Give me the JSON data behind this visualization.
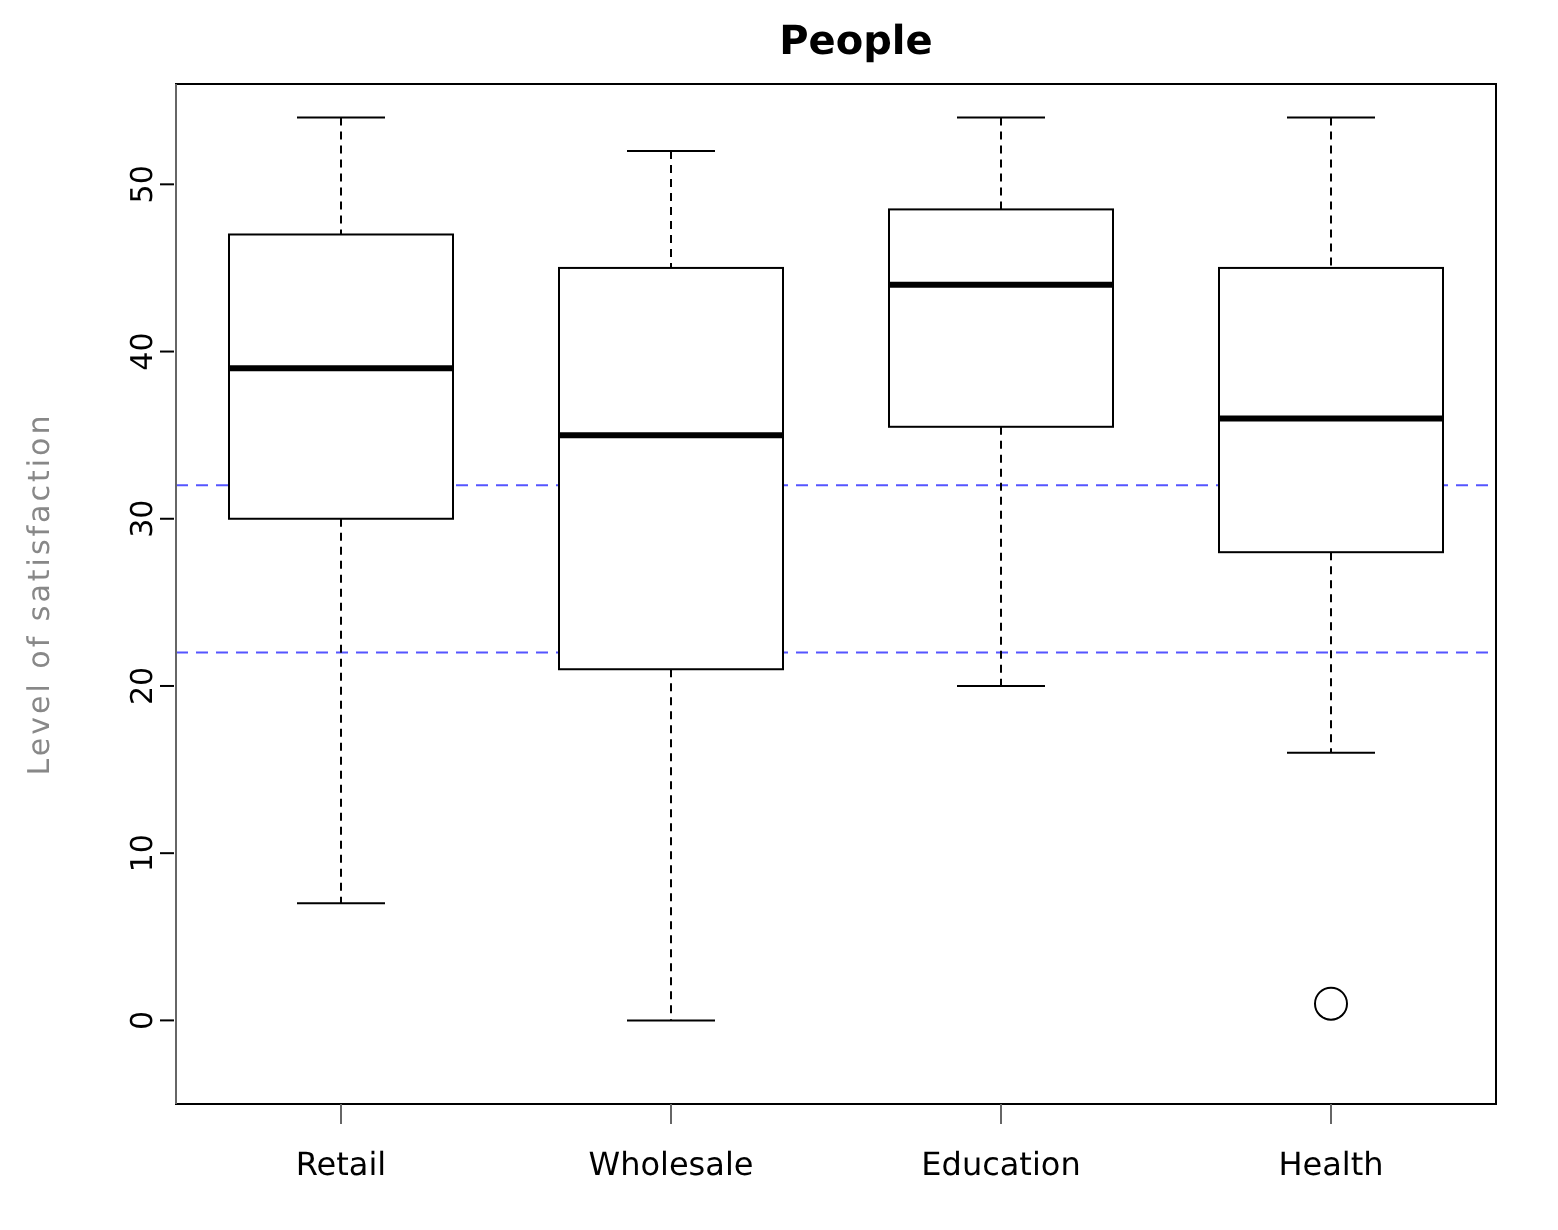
{
  "chart_data": {
    "type": "box",
    "title": "People",
    "ylabel": "Level of satisfaction",
    "categories": [
      "Retail",
      "Wholesale",
      "Education",
      "Health"
    ],
    "boxes": [
      {
        "low": 7,
        "q1": 30,
        "median": 39,
        "q3": 47,
        "high": 54
      },
      {
        "low": 0,
        "q1": 21,
        "median": 35,
        "q3": 45,
        "high": 52
      },
      {
        "low": 20,
        "q1": 35.5,
        "median": 44,
        "q3": 48.5,
        "high": 54
      },
      {
        "low": 16,
        "q1": 28,
        "median": 36,
        "q3": 45,
        "high": 54,
        "outliers": [
          1
        ]
      }
    ],
    "ylim": [
      -5,
      56
    ],
    "yticks": [
      0,
      10,
      20,
      30,
      40,
      50
    ],
    "ref_lines": [
      {
        "axis": "y",
        "value": 32,
        "color": "#5555ff",
        "line_style": "dashed"
      },
      {
        "axis": "y",
        "value": 22,
        "color": "#5555ff",
        "line_style": "dashed"
      }
    ],
    "grid": false,
    "legend": false
  }
}
